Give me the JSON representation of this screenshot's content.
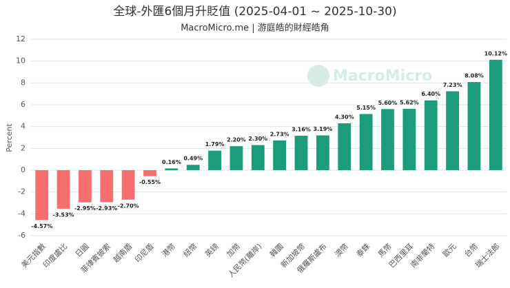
{
  "chart_data": {
    "type": "bar",
    "title": "全球-外匯6個月升貶值 (2025-04-01 ~ 2025-10-30)",
    "subtitle": "MacroMicro.me | 游庭皓的財經皓角",
    "watermark": "MacroMicro",
    "y_label": "Percent",
    "categories": [
      "美元指數",
      "印度盧比",
      "日圓",
      "菲律賓披索",
      "越南盾",
      "印尼盾",
      "港幣",
      "紐幣",
      "英鎊",
      "加幣",
      "人民幣(離岸)",
      "韓圜",
      "新加坡幣",
      "俄羅斯盧布",
      "澳幣",
      "泰銖",
      "馬幣",
      "巴西里耳",
      "南非蘭特",
      "歐元",
      "台幣",
      "瑞士法郎"
    ],
    "values": [
      -4.57,
      -3.53,
      -2.95,
      -2.93,
      -2.7,
      -0.55,
      0.16,
      0.49,
      1.79,
      2.2,
      2.3,
      2.73,
      3.16,
      3.19,
      4.3,
      5.15,
      5.6,
      5.62,
      6.4,
      7.23,
      8.08,
      10.12
    ],
    "value_labels": [
      "-4.57%",
      "-3.53%",
      "-2.95%",
      "-2.93%",
      "-2.70%",
      "-0.55%",
      "0.16%",
      "0.49%",
      "1.79%",
      "2.20%",
      "2.30%",
      "2.73%",
      "3.16%",
      "3.19%",
      "4.30%",
      "5.15%",
      "5.60%",
      "5.62%",
      "6.40%",
      "7.23%",
      "8.08%",
      "10.12%"
    ],
    "positive_color": "#1b9c7b",
    "negative_color": "#f46f6d",
    "ylim": [
      -6,
      12
    ],
    "yticks": [
      -6,
      -4,
      -2,
      0,
      2,
      4,
      6,
      8,
      10,
      12
    ],
    "grid": true
  }
}
